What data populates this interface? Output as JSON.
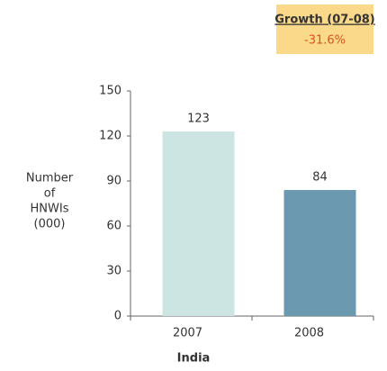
{
  "chart_data": {
    "type": "bar",
    "annotation": {
      "title": "Growth (07-08)",
      "value": "-31.6%"
    },
    "ylabel": [
      "Number",
      "of",
      "HNWIs",
      "(000)"
    ],
    "xlabel": "India",
    "categories": [
      "2007",
      "2008"
    ],
    "values": [
      123,
      84
    ],
    "colors": [
      "#cde5e2",
      "#6b9ab0"
    ],
    "ylim": [
      0,
      150
    ],
    "yticks": [
      0,
      30,
      60,
      90,
      120,
      150
    ],
    "grid": false
  }
}
